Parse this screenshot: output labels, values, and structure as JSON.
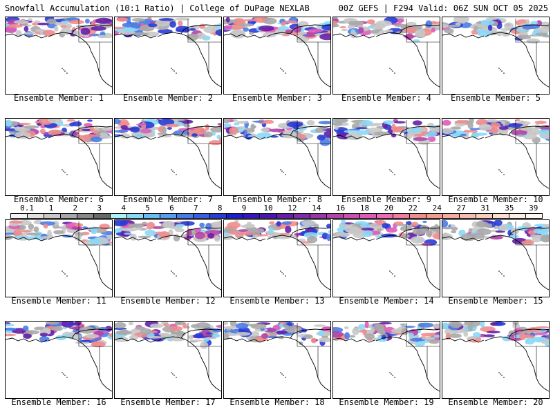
{
  "header": {
    "title_left": "Snowfall Accumulation (10:1 Ratio) | College of DuPage NEXLAB",
    "title_right": "00Z GEFS | F294 Valid: 06Z SUN OCT 05 2025"
  },
  "panels": [
    {
      "label": "Ensemble Member: 1"
    },
    {
      "label": "Ensemble Member: 2"
    },
    {
      "label": "Ensemble Member: 3"
    },
    {
      "label": "Ensemble Member: 4"
    },
    {
      "label": "Ensemble Member: 5"
    },
    {
      "label": "Ensemble Member: 6"
    },
    {
      "label": "Ensemble Member: 7"
    },
    {
      "label": "Ensemble Member: 8"
    },
    {
      "label": "Ensemble Member: 9"
    },
    {
      "label": "Ensemble Member: 10"
    },
    {
      "label": "Ensemble Member: 11"
    },
    {
      "label": "Ensemble Member: 12"
    },
    {
      "label": "Ensemble Member: 13"
    },
    {
      "label": "Ensemble Member: 14"
    },
    {
      "label": "Ensemble Member: 15"
    },
    {
      "label": "Ensemble Member: 16"
    },
    {
      "label": "Ensemble Member: 17"
    },
    {
      "label": "Ensemble Member: 18"
    },
    {
      "label": "Ensemble Member: 19"
    },
    {
      "label": "Ensemble Member: 20"
    }
  ],
  "colorbar": {
    "ticks": [
      "0.1",
      "1",
      "2",
      "3",
      "4",
      "5",
      "6",
      "7",
      "8",
      "9",
      "10",
      "12",
      "14",
      "16",
      "18",
      "20",
      "22",
      "24",
      "27",
      "31",
      "35",
      "39"
    ],
    "colors": [
      "#f2f2f2",
      "#e0e0e0",
      "#c8c8c8",
      "#a8a8a8",
      "#888888",
      "#686868",
      "#b0f0f8",
      "#8ad8f6",
      "#6cbcf2",
      "#5a9cee",
      "#4a7ce6",
      "#3a5ce0",
      "#2a3cd6",
      "#1a1ed0",
      "#3414c4",
      "#4a14b4",
      "#6420a8",
      "#7e2ca8",
      "#9838a8",
      "#b044a8",
      "#c850b0",
      "#de5cb8",
      "#ec6cb8",
      "#f07ca0",
      "#f08c8c",
      "#f29c90",
      "#f4aca0",
      "#f6bcb0",
      "#f8cdc0",
      "#fae0d2",
      "#fcf0e4",
      "#fff8ee"
    ]
  }
}
